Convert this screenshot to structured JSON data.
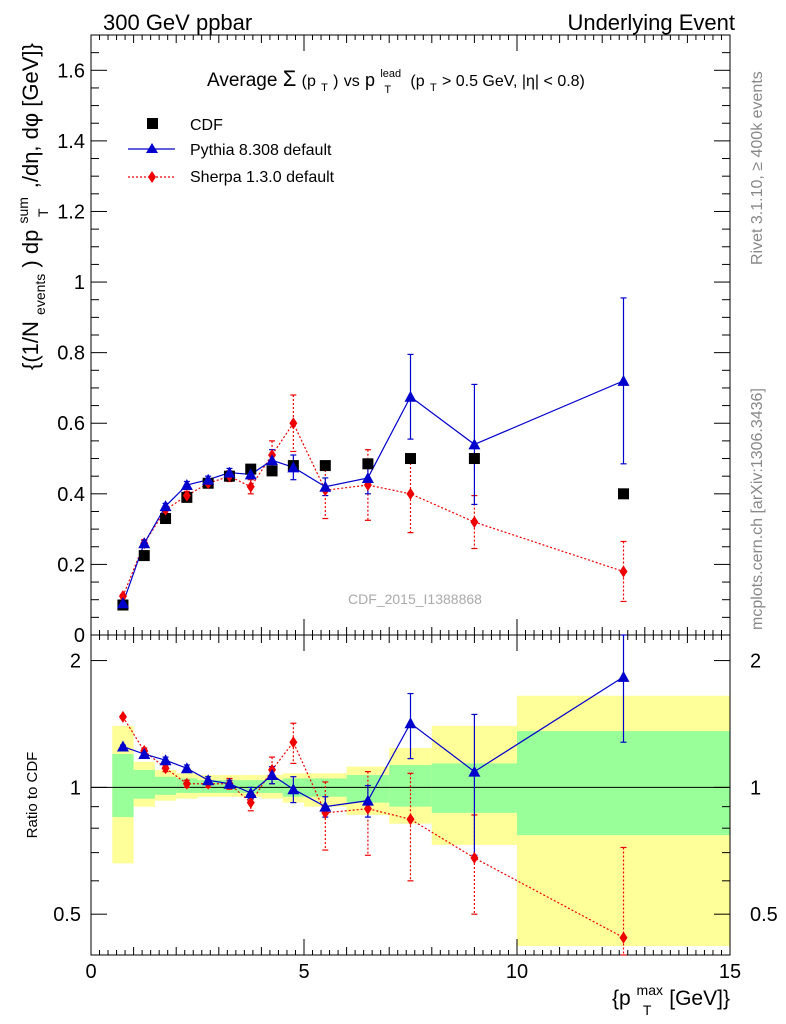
{
  "header": {
    "left": "300 GeV ppbar",
    "right": "Underlying Event"
  },
  "side_labels": {
    "rivet": "Rivet 3.1.10, ≥ 400k events",
    "mcplots": "mcplots.cern.ch [arXiv:1306.3436]"
  },
  "watermark": "CDF_2015_I1388868",
  "colors": {
    "data": "#000000",
    "pythia": "#0000cc",
    "sherpa": "#ee0000",
    "band_inner": "#99ff99",
    "band_outer": "#ffff99"
  },
  "chart_data": [
    {
      "type": "scatter",
      "title": "Average Σ(pT) vs pT^lead (pT > 0.5 GeV, |η| < 0.8)",
      "title_parts": {
        "avg": "Average",
        "sigma": "Σ",
        "p": "(p",
        "t": "T",
        "close": ")",
        "vs": "vs",
        "plead": "p",
        "lead": "lead",
        "T2": "T",
        "cut": "(p",
        "T3": "T",
        "rest": "> 0.5 GeV, |η| < 0.8)"
      },
      "ylabel": "{(1/N_events) dp_T^sum/dη, dφ [GeV]}",
      "ylabel_parts": {
        "a": "{(1/N",
        "b": "events",
        "c": ") dp",
        "d": "sum",
        "e": "T",
        "f": ",/dη, dφ [GeV]}"
      },
      "xlim": [
        0,
        15
      ],
      "ylim": [
        0,
        1.7
      ],
      "yticks": [
        "0",
        "0.2",
        "0.4",
        "0.6",
        "0.8",
        "1",
        "1.2",
        "1.4",
        "1.6"
      ],
      "series": [
        {
          "name": "CDF",
          "marker": "square",
          "x": [
            0.75,
            1.25,
            1.75,
            2.25,
            2.75,
            3.25,
            3.75,
            4.25,
            4.75,
            5.5,
            6.5,
            7.5,
            9.0,
            12.5
          ],
          "y": [
            0.085,
            0.225,
            0.33,
            0.39,
            0.43,
            0.45,
            0.47,
            0.465,
            0.48,
            0.48,
            0.485,
            0.5,
            0.5,
            0.4
          ]
        },
        {
          "name": "Pythia 8.308 default",
          "marker": "triangle",
          "x": [
            0.75,
            1.25,
            1.75,
            2.25,
            2.75,
            3.25,
            3.75,
            4.25,
            4.75,
            5.5,
            6.5,
            7.5,
            9.0,
            12.5
          ],
          "y": [
            0.09,
            0.26,
            0.365,
            0.425,
            0.44,
            0.46,
            0.455,
            0.495,
            0.475,
            0.42,
            0.445,
            0.675,
            0.54,
            0.72
          ],
          "err": [
            0.005,
            0.008,
            0.008,
            0.01,
            0.01,
            0.012,
            0.012,
            0.03,
            0.035,
            0.025,
            0.045,
            0.12,
            0.17,
            0.235
          ]
        },
        {
          "name": "Sherpa 1.3.0 default",
          "marker": "diamond",
          "linestyle": "dotted",
          "x": [
            0.75,
            1.25,
            1.75,
            2.25,
            2.75,
            3.25,
            3.75,
            4.25,
            4.75,
            5.5,
            6.5,
            7.5,
            9.0,
            12.5
          ],
          "y": [
            0.11,
            0.26,
            0.355,
            0.395,
            0.43,
            0.45,
            0.42,
            0.51,
            0.6,
            0.41,
            0.425,
            0.4,
            0.32,
            0.18
          ],
          "err": [
            0.005,
            0.01,
            0.01,
            0.012,
            0.012,
            0.015,
            0.02,
            0.04,
            0.08,
            0.08,
            0.1,
            0.11,
            0.075,
            0.085
          ]
        }
      ]
    },
    {
      "type": "scatter",
      "ylabel": "Ratio to CDF",
      "xlabel": "{p_T^max [GeV]}",
      "xlabel_parts": {
        "a": "{p",
        "b": "max",
        "c": "T",
        "d": " [GeV]}"
      },
      "xlim": [
        0,
        15
      ],
      "ylim": [
        0.4,
        2.3
      ],
      "xticks": [
        "0",
        "5",
        "10",
        "15"
      ],
      "yticks": [
        "0.5",
        "1",
        "2"
      ],
      "bands": [
        {
          "x0": 0.5,
          "x1": 1.0,
          "inner": [
            0.85,
            1.2
          ],
          "outer": [
            0.66,
            1.4
          ]
        },
        {
          "x0": 1.0,
          "x1": 1.5,
          "inner": [
            0.94,
            1.1
          ],
          "outer": [
            0.9,
            1.15
          ]
        },
        {
          "x0": 1.5,
          "x1": 2.0,
          "inner": [
            0.96,
            1.06
          ],
          "outer": [
            0.93,
            1.1
          ]
        },
        {
          "x0": 2.0,
          "x1": 2.5,
          "inner": [
            0.97,
            1.05
          ],
          "outer": [
            0.94,
            1.08
          ]
        },
        {
          "x0": 2.5,
          "x1": 3.0,
          "inner": [
            0.97,
            1.04
          ],
          "outer": [
            0.95,
            1.07
          ]
        },
        {
          "x0": 3.0,
          "x1": 3.5,
          "inner": [
            0.97,
            1.04
          ],
          "outer": [
            0.95,
            1.07
          ]
        },
        {
          "x0": 3.5,
          "x1": 4.0,
          "inner": [
            0.97,
            1.04
          ],
          "outer": [
            0.95,
            1.07
          ]
        },
        {
          "x0": 4.0,
          "x1": 4.5,
          "inner": [
            0.97,
            1.04
          ],
          "outer": [
            0.94,
            1.07
          ]
        },
        {
          "x0": 4.5,
          "x1": 5.0,
          "inner": [
            0.95,
            1.05
          ],
          "outer": [
            0.92,
            1.08
          ]
        },
        {
          "x0": 5.0,
          "x1": 6.0,
          "inner": [
            0.95,
            1.05
          ],
          "outer": [
            0.9,
            1.08
          ]
        },
        {
          "x0": 6.0,
          "x1": 7.0,
          "inner": [
            0.92,
            1.07
          ],
          "outer": [
            0.86,
            1.12
          ]
        },
        {
          "x0": 7.0,
          "x1": 8.0,
          "inner": [
            0.9,
            1.13
          ],
          "outer": [
            0.82,
            1.24
          ]
        },
        {
          "x0": 8.0,
          "x1": 10.0,
          "inner": [
            0.87,
            1.14
          ],
          "outer": [
            0.73,
            1.4
          ]
        },
        {
          "x0": 10.0,
          "x1": 15.0,
          "inner": [
            0.77,
            1.36
          ],
          "outer": [
            0.42,
            1.65
          ]
        }
      ],
      "series": [
        {
          "name": "Pythia 8.308 default",
          "x": [
            0.75,
            1.25,
            1.75,
            2.25,
            2.75,
            3.25,
            3.75,
            4.25,
            4.75,
            5.5,
            6.5,
            7.5,
            9.0,
            12.5
          ],
          "y": [
            1.25,
            1.2,
            1.16,
            1.11,
            1.04,
            1.02,
            0.97,
            1.07,
            0.99,
            0.9,
            0.93,
            1.42,
            1.09,
            1.83
          ],
          "err": [
            0.01,
            0.02,
            0.02,
            0.02,
            0.02,
            0.02,
            0.03,
            0.05,
            0.07,
            0.05,
            0.08,
            0.25,
            0.4,
            0.55
          ]
        },
        {
          "name": "Sherpa 1.3.0 default",
          "x": [
            0.75,
            1.25,
            1.75,
            2.25,
            2.75,
            3.25,
            3.75,
            4.25,
            4.75,
            5.5,
            6.5,
            7.5,
            9.0,
            12.5
          ],
          "y": [
            1.47,
            1.22,
            1.11,
            1.02,
            1.02,
            1.02,
            0.92,
            1.1,
            1.28,
            0.87,
            0.89,
            0.84,
            0.68,
            0.44
          ],
          "err": [
            0.01,
            0.02,
            0.02,
            0.02,
            0.02,
            0.03,
            0.04,
            0.08,
            0.14,
            0.16,
            0.2,
            0.24,
            0.18,
            0.28
          ]
        }
      ]
    }
  ]
}
